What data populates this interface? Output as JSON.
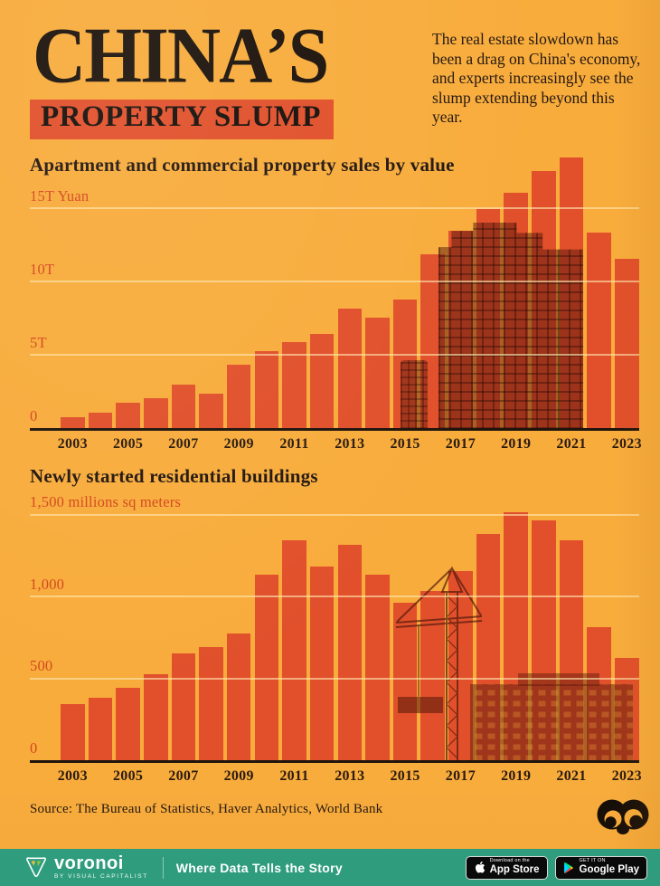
{
  "header": {
    "title": "CHINA’S",
    "subtitle": "PROPERTY SLUMP",
    "intro": "The real estate slowdown has been a drag on China's economy, and experts increasingly see the slump extending beyond this year."
  },
  "source": "Source: The Bureau of Statistics, Haver Analytics, World Bank",
  "footer": {
    "brand": "voronoi",
    "brand_sub": "BY VISUAL CAPITALIST",
    "tagline": "Where Data Tells the Story",
    "app_store": {
      "line1": "Download on the",
      "line2": "App Store"
    },
    "google_play": {
      "line1": "GET IT ON",
      "line2": "Google Play"
    }
  },
  "colors": {
    "background": "#F8AC3C",
    "bar": "#E1502B",
    "accent_red": "#E1502B",
    "dark_text": "#241812",
    "red_text": "#D4481F",
    "footer_green": "#2F9D7D"
  },
  "chart_data": [
    {
      "type": "bar",
      "title": "Apartment and commercial property sales by value",
      "ylabel": "Trillion Yuan",
      "unit_label": "15T Yuan",
      "categories": [
        2003,
        2004,
        2005,
        2006,
        2007,
        2008,
        2009,
        2010,
        2011,
        2012,
        2013,
        2014,
        2015,
        2016,
        2017,
        2018,
        2019,
        2020,
        2021,
        2022,
        2023
      ],
      "values": [
        0.8,
        1.1,
        1.8,
        2.1,
        3.0,
        2.4,
        4.4,
        5.3,
        5.9,
        6.5,
        8.2,
        7.6,
        8.8,
        11.9,
        13.5,
        15.0,
        16.1,
        17.6,
        18.5,
        13.4,
        11.6
      ],
      "ylim": [
        0,
        19
      ],
      "yticks": [
        {
          "value": 0,
          "label": "0"
        },
        {
          "value": 5,
          "label": "5T"
        },
        {
          "value": 10,
          "label": "10T"
        },
        {
          "value": 15,
          "label": "15T Yuan"
        }
      ],
      "xtick_labels": [
        "2003",
        "2005",
        "2007",
        "2009",
        "2011",
        "2013",
        "2015",
        "2017",
        "2019",
        "2021",
        "2023"
      ],
      "grid": "horizontal",
      "legend": "none"
    },
    {
      "type": "bar",
      "title": "Newly started residential buildings",
      "ylabel": "millions sq meters",
      "unit_label": "1,500 millions sq meters",
      "categories": [
        2003,
        2004,
        2005,
        2006,
        2007,
        2008,
        2009,
        2010,
        2011,
        2012,
        2013,
        2014,
        2015,
        2016,
        2017,
        2018,
        2019,
        2020,
        2021,
        2022,
        2023
      ],
      "values": [
        350,
        390,
        450,
        530,
        660,
        700,
        780,
        1140,
        1350,
        1190,
        1320,
        1140,
        970,
        1040,
        1160,
        1390,
        1520,
        1470,
        1350,
        820,
        630
      ],
      "ylim": [
        0,
        1575
      ],
      "yticks": [
        {
          "value": 0,
          "label": "0"
        },
        {
          "value": 500,
          "label": "500"
        },
        {
          "value": 1000,
          "label": "1,000"
        },
        {
          "value": 1500,
          "label": "1,500 millions sq meters"
        }
      ],
      "xtick_labels": [
        "2003",
        "2005",
        "2007",
        "2009",
        "2011",
        "2013",
        "2015",
        "2017",
        "2019",
        "2021",
        "2023"
      ],
      "grid": "horizontal",
      "legend": "none"
    }
  ]
}
